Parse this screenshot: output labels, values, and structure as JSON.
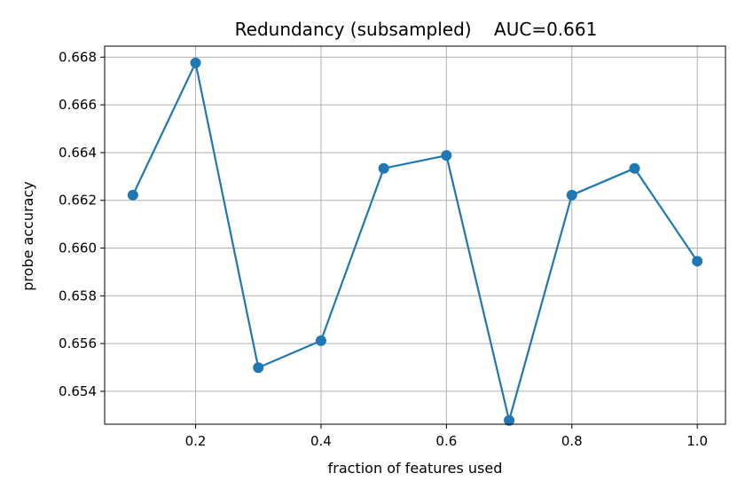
{
  "chart_data": {
    "type": "line",
    "title": "Redundancy (subsampled)    AUC=0.661",
    "xlabel": "fraction of features used",
    "ylabel": "probe accuracy",
    "x": [
      0.1,
      0.2,
      0.3,
      0.4,
      0.5,
      0.6,
      0.7,
      0.8,
      0.9,
      1.0
    ],
    "series": [
      {
        "values": [
          0.66222,
          0.66776,
          0.65499,
          0.65612,
          0.66334,
          0.66388,
          0.65278,
          0.66222,
          0.66334,
          0.65945
        ]
      }
    ],
    "xlim": [
      0.055,
      1.045
    ],
    "ylim": [
      0.65262,
      0.66846
    ],
    "xticks": [
      0.2,
      0.4,
      0.6,
      0.8,
      1.0
    ],
    "xtick_labels": [
      "0.2",
      "0.4",
      "0.6",
      "0.8",
      "1.0"
    ],
    "yticks": [
      0.654,
      0.656,
      0.658,
      0.66,
      0.662,
      0.664,
      0.666,
      0.668
    ],
    "ytick_labels": [
      "0.654",
      "0.656",
      "0.658",
      "0.660",
      "0.662",
      "0.664",
      "0.666",
      "0.668"
    ],
    "grid": true,
    "line_color": "#1f77b4",
    "grid_color": "#b0b0b0"
  }
}
